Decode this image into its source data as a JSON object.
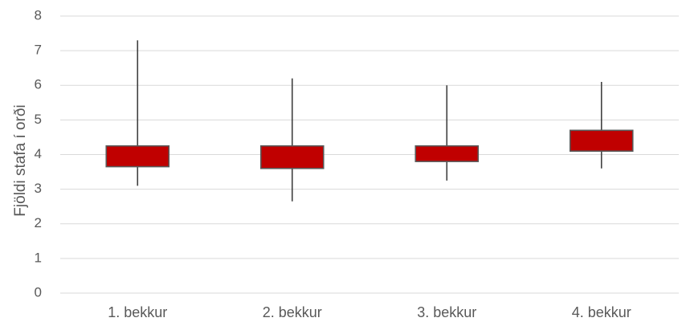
{
  "chart_data": {
    "type": "boxplot",
    "title": "",
    "xlabel": "",
    "ylabel": "Fjöldi stafa í orði",
    "categories": [
      "1. bekkur",
      "2. bekkur",
      "3. bekkur",
      "4. bekkur"
    ],
    "series": [
      {
        "boxes": [
          {
            "min": 3.1,
            "q1": 3.65,
            "q3": 4.25,
            "max": 7.3
          },
          {
            "min": 2.65,
            "q1": 3.6,
            "q3": 4.25,
            "max": 6.2
          },
          {
            "min": 3.25,
            "q1": 3.8,
            "q3": 4.25,
            "max": 6.0
          },
          {
            "min": 3.6,
            "q1": 4.1,
            "q3": 4.7,
            "max": 6.1
          }
        ]
      }
    ],
    "ylim": [
      0,
      8
    ],
    "yticks": [
      0,
      1,
      2,
      3,
      4,
      5,
      6,
      7,
      8
    ],
    "grid": true,
    "colors": {
      "box_fill": "#c00000",
      "box_stroke": "#595959",
      "whisker": "#404040",
      "grid": "#d9d9d9",
      "text": "#595959"
    }
  }
}
